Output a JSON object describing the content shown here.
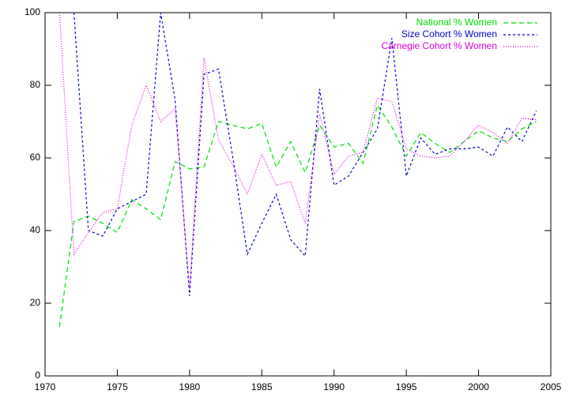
{
  "chart_data": {
    "type": "line",
    "x": [
      1971,
      1972,
      1973,
      1974,
      1975,
      1976,
      1977,
      1978,
      1979,
      1980,
      1981,
      1982,
      1983,
      1984,
      1985,
      1986,
      1987,
      1988,
      1989,
      1990,
      1991,
      1992,
      1993,
      1994,
      1995,
      1996,
      1997,
      1998,
      1999,
      2000,
      2001,
      2002,
      2003,
      2004
    ],
    "series": [
      {
        "name": "National % Women",
        "color": "#00dd00",
        "dash": "6,4",
        "values": [
          13.5,
          42.5,
          44,
          42,
          39.5,
          48.5,
          46,
          43,
          59,
          57,
          57.5,
          70,
          69,
          68,
          69.5,
          57.5,
          64.5,
          56,
          69,
          63,
          64,
          58.5,
          74.5,
          68.5,
          60.5,
          67,
          64,
          61.5,
          64.5,
          67.5,
          65.5,
          64.5,
          68,
          70
        ]
      },
      {
        "name": "Size Cohort % Women",
        "color": "#0000cc",
        "dash": "3,3",
        "values": [
          null,
          100,
          40,
          38.5,
          46,
          48,
          50,
          100,
          76,
          22,
          83,
          84.5,
          60,
          33.5,
          42,
          50,
          37.5,
          33,
          79,
          52.5,
          55,
          61.5,
          68,
          93,
          55,
          65.5,
          61,
          62.5,
          62.5,
          63,
          60.5,
          68.5,
          64.5,
          73
        ]
      },
      {
        "name": "Carnegie Cohort % Women",
        "color": "#dd00dd",
        "dash": "1,2",
        "values": [
          100,
          33.5,
          39.5,
          45,
          46,
          69,
          80,
          70,
          73.5,
          24,
          87.5,
          65,
          58,
          50,
          61,
          52.5,
          53.5,
          42,
          72,
          55.5,
          60.5,
          61.5,
          76.5,
          75.5,
          62.5,
          60.5,
          60,
          60.5,
          64.5,
          69,
          67,
          64,
          71,
          70.5
        ]
      }
    ],
    "xlim": [
      1970,
      2005
    ],
    "xticks": [
      1970,
      1975,
      1980,
      1985,
      1990,
      1995,
      2000,
      2005
    ],
    "ylim": [
      0,
      100
    ],
    "yticks": [
      0,
      20,
      40,
      60,
      80,
      100
    ],
    "legend": "top-right"
  }
}
